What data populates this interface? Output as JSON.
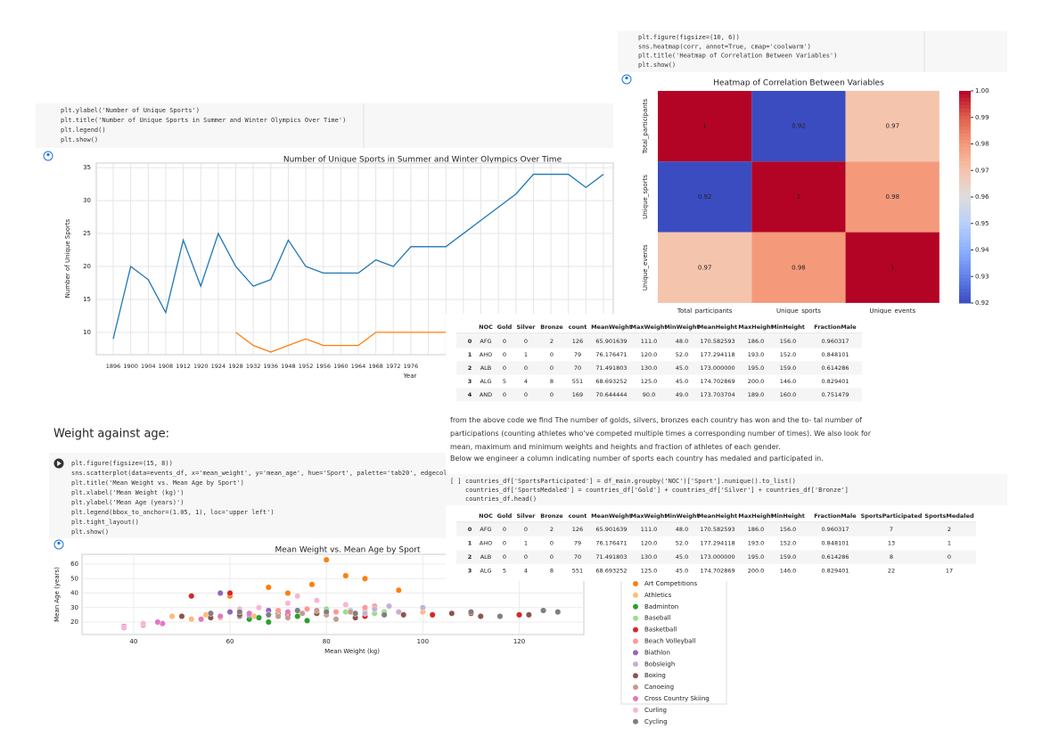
{
  "code_cells": [
    {
      "lines": [
        "plt.figure(figsize=(10, 6))",
        "sns.heatmap(corr, annot=True, cmap='coolwarm')",
        "plt.title('Heatmap of Correlation Between Variables')",
        "plt.show()"
      ]
    },
    {
      "lines": [
        "plt.ylabel('Number of Unique Sports')",
        "plt.title('Number of Unique Sports in Summer and Winter Olympics Over Time')",
        "plt.legend()",
        "plt.show()"
      ]
    },
    {
      "marker": "[ ]",
      "lines": [
        "countries_df['SportsParticipated'] = df_main.groupby('NOC')['Sport'].nunique().to_list()",
        "countries_df['SportsMedaled'] = countries_df['Gold']  + countries_df['Silver']  + countries_df['Bronze']",
        "countries_df.head()"
      ]
    },
    {
      "lines": [
        "plt.figure(figsize=(15, 8))",
        "sns.scatterplot(data=events_df, x='mean_weight', y='mean_age', hue='Sport', palette='tab20', edgecol",
        "plt.title('Mean Weight vs. Mean Age by Sport')",
        "plt.xlabel('Mean Weight (kg)')",
        "plt.ylabel('Mean Age (years)')",
        "plt.legend(bbox_to_anchor=(1.05, 1), loc='upper left')",
        "plt.tight_layout()",
        "plt.show()"
      ]
    }
  ],
  "chart_data": [
    {
      "type": "line",
      "title": "Number of Unique Sports in Summer and Winter Olympics Over Time",
      "xlabel": "Year",
      "ylabel": "Number of Unique Sports",
      "categories": [
        "1896",
        "1900",
        "1904",
        "1908",
        "1912",
        "1920",
        "1924",
        "1928",
        "1932",
        "1936",
        "1948",
        "1952",
        "1956",
        "1960",
        "1964",
        "1968",
        "1972",
        "1976",
        null,
        null,
        null,
        null,
        null,
        null,
        null,
        null,
        null,
        null,
        null
      ],
      "series": [
        {
          "color": "#1f77b4",
          "values": [
            9,
            20,
            18,
            13,
            24,
            17,
            25,
            20,
            17,
            18,
            24,
            20,
            19,
            19,
            19,
            21,
            20,
            23,
            23,
            23,
            25,
            27,
            29,
            31,
            34,
            34,
            34,
            32,
            34
          ]
        },
        {
          "color": "#ff7f0e",
          "values": [
            null,
            null,
            null,
            null,
            null,
            null,
            null,
            10,
            8,
            7,
            8,
            9,
            8,
            8,
            8,
            10,
            10,
            10,
            10,
            10,
            null,
            null,
            null,
            null,
            null,
            null,
            null,
            null,
            null
          ]
        }
      ],
      "ylim": [
        6.6,
        35.7
      ],
      "yticks": [
        10,
        15,
        20,
        25,
        30,
        35
      ],
      "grid": true
    },
    {
      "type": "heatmap",
      "title": "Heatmap of Correlation Between Variables",
      "categories": [
        "Total_participants",
        "Unique_sports",
        "Unique_events"
      ],
      "values": [
        [
          1,
          0.92,
          0.97
        ],
        [
          0.92,
          1,
          0.98
        ],
        [
          0.97,
          0.98,
          1
        ]
      ],
      "cmap": "coolwarm",
      "clim": [
        0.92,
        1.0
      ],
      "cticks": [
        {
          "value": 1.0,
          "label": "1.00"
        },
        {
          "value": 0.99,
          "label": "0.99"
        },
        {
          "value": 0.98,
          "label": "0.98"
        },
        {
          "value": 0.97,
          "label": "0.97"
        },
        {
          "value": 0.96,
          "label": "0.96"
        },
        {
          "value": 0.95,
          "label": "0.95"
        },
        {
          "value": 0.94,
          "label": "0.94"
        },
        {
          "value": 0.93,
          "label": "0.93"
        },
        {
          "value": 0.92,
          "label": "0.92"
        }
      ]
    },
    {
      "type": "scatter",
      "title": "Mean Weight vs. Mean Age by Sport",
      "xlabel": "Mean Weight (kg)",
      "ylabel": "Mean Age (years)",
      "xlim": [
        29.3,
        133.4
      ],
      "ylim": [
        11.4,
        66.8
      ],
      "xticks": [
        40,
        60,
        80,
        100,
        120
      ],
      "yticks": [
        20,
        30,
        40,
        50,
        60
      ],
      "grid": true,
      "series": [
        {
          "name": "Art Competitions",
          "color": "#ff7f0e",
          "x": [
            80,
            77,
            68,
            88,
            72,
            95,
            60,
            84
          ],
          "values": [
            63,
            46,
            44,
            50,
            40,
            42,
            38,
            52
          ]
        },
        {
          "name": "Athletics",
          "color": "#ffbb78",
          "x": [
            48,
            55,
            62,
            70,
            78,
            88,
            100,
            65,
            58,
            52
          ],
          "values": [
            24,
            25,
            26,
            25,
            27,
            26,
            27,
            24,
            23,
            22
          ]
        },
        {
          "name": "Badminton",
          "color": "#2ca02c",
          "x": [
            58,
            62,
            66,
            70,
            64,
            74,
            68,
            76
          ],
          "values": [
            24,
            25,
            23,
            26,
            22,
            24,
            20,
            21
          ]
        },
        {
          "name": "Baseball",
          "color": "#98df8a",
          "x": [
            84,
            88,
            90,
            80,
            92,
            86
          ],
          "values": [
            27,
            28,
            26,
            29,
            27,
            25
          ]
        },
        {
          "name": "Basketball",
          "color": "#d62728",
          "x": [
            72,
            80,
            88,
            95,
            102,
            110,
            120,
            52,
            60
          ],
          "values": [
            25,
            26,
            24,
            27,
            25,
            26,
            25,
            38,
            40
          ]
        },
        {
          "name": "Beach Volleyball",
          "color": "#ff9896",
          "x": [
            70,
            76,
            82,
            88,
            64,
            90
          ],
          "values": [
            28,
            29,
            27,
            30,
            26,
            31
          ]
        },
        {
          "name": "Biathlon",
          "color": "#9467bd",
          "x": [
            56,
            60,
            64,
            68,
            62,
            58,
            66
          ],
          "values": [
            26,
            27,
            25,
            28,
            24,
            40,
            30
          ]
        },
        {
          "name": "Bobsleigh",
          "color": "#c5b0d5",
          "x": [
            85,
            90,
            95,
            100,
            88,
            93
          ],
          "values": [
            28,
            29,
            27,
            30,
            26,
            31
          ]
        },
        {
          "name": "Boxing",
          "color": "#8c564b",
          "x": [
            50,
            56,
            62,
            70,
            78,
            86,
            96,
            106,
            112,
            122
          ],
          "values": [
            24,
            23,
            25,
            24,
            26,
            23,
            25,
            26,
            24,
            25
          ]
        },
        {
          "name": "Canoeing",
          "color": "#c49c94",
          "x": [
            70,
            75,
            80,
            85,
            72,
            78,
            82
          ],
          "values": [
            24,
            26,
            25,
            27,
            23,
            28,
            22
          ]
        },
        {
          "name": "Cross Country Skiing",
          "color": "#e377c2",
          "x": [
            38,
            42,
            46,
            54,
            58,
            64,
            68,
            72,
            45
          ],
          "values": [
            17,
            18,
            19,
            22,
            24,
            26,
            25,
            27,
            20
          ]
        },
        {
          "name": "Curling",
          "color": "#f7b6d2",
          "x": [
            66,
            72,
            78,
            84,
            62,
            74,
            38,
            42
          ],
          "values": [
            30,
            33,
            35,
            32,
            29,
            38,
            16,
            19
          ]
        },
        {
          "name": "Cycling",
          "color": "#7f7f7f",
          "x": [
            56,
            62,
            68,
            74,
            80,
            86,
            92,
            110,
            116,
            125,
            128
          ],
          "values": [
            26,
            27,
            25,
            28,
            27,
            26,
            25,
            27,
            24,
            28,
            27
          ]
        }
      ]
    }
  ],
  "tables": [
    {
      "columns": [
        "NOC",
        "Gold",
        "Silver",
        "Bronze",
        "count",
        "MeanWeight",
        "MaxWeight",
        "MinWeight",
        "MeanHeight",
        "MaxHeight",
        "MinHeight",
        "FractionMale"
      ],
      "rows": [
        [
          "0",
          "AFG",
          "0",
          "0",
          "2",
          "126",
          "65.901639",
          "111.0",
          "48.0",
          "170.582593",
          "186.0",
          "156.0",
          "0.960317"
        ],
        [
          "1",
          "AHO",
          "0",
          "1",
          "0",
          "79",
          "76.176471",
          "120.0",
          "52.0",
          "177.294118",
          "193.0",
          "152.0",
          "0.848101"
        ],
        [
          "2",
          "ALB",
          "0",
          "0",
          "0",
          "70",
          "71.491803",
          "130.0",
          "45.0",
          "173.000000",
          "195.0",
          "159.0",
          "0.614286"
        ],
        [
          "3",
          "ALG",
          "5",
          "4",
          "8",
          "551",
          "68.693252",
          "125.0",
          "45.0",
          "174.702869",
          "200.0",
          "146.0",
          "0.829401"
        ],
        [
          "4",
          "AND",
          "0",
          "0",
          "0",
          "169",
          "70.644444",
          "90.0",
          "49.0",
          "173.703704",
          "189.0",
          "160.0",
          "0.751479"
        ]
      ]
    },
    {
      "columns": [
        "NOC",
        "Gold",
        "Silver",
        "Bronze",
        "count",
        "MeanWeight",
        "MaxWeight",
        "MinWeight",
        "MeanHeight",
        "MaxHeight",
        "MinHeight",
        "FractionMale",
        "SportsParticipated",
        "SportsMedaled"
      ],
      "rows": [
        [
          "0",
          "AFG",
          "0",
          "0",
          "2",
          "126",
          "65.901639",
          "111.0",
          "48.0",
          "170.582593",
          "186.0",
          "156.0",
          "0.960317",
          "7",
          "2"
        ],
        [
          "1",
          "AHO",
          "0",
          "1",
          "0",
          "79",
          "76.176471",
          "120.0",
          "52.0",
          "177.294118",
          "193.0",
          "152.0",
          "0.848101",
          "13",
          "1"
        ],
        [
          "2",
          "ALB",
          "0",
          "0",
          "0",
          "70",
          "71.491803",
          "130.0",
          "45.0",
          "173.000000",
          "195.0",
          "159.0",
          "0.614286",
          "8",
          "0"
        ],
        [
          "3",
          "ALG",
          "5",
          "4",
          "8",
          "551",
          "68.693252",
          "125.0",
          "45.0",
          "174.702869",
          "200.0",
          "146.0",
          "0.829401",
          "22",
          "17"
        ]
      ]
    }
  ],
  "heading": "Weight against age:",
  "paragraphs": [
    "from the above code we find The number of golds, silvers, bronzes each country has won and the to- tal number of participations (counting athletes who've competed multiple times a corresponding number of times). We also look for mean, maximum and minimum weights and heights and fraction of athletes of each gender.",
    "Below we engineer a column indicating number of sports each country has medaled and participated in."
  ]
}
